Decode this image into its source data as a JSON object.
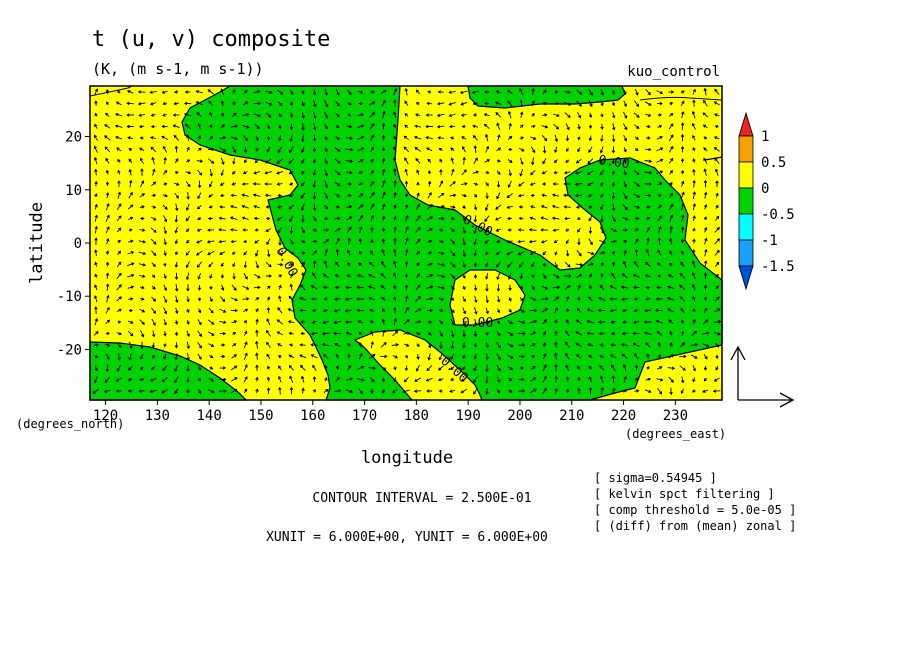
{
  "chart_data": {
    "type": "heatmap",
    "title": "t (u, v) composite",
    "subtitle": "(K, (m s-1, m s-1))",
    "run_label": "kuo_control",
    "xlabel": "longitude",
    "ylabel": "latitude",
    "x_unit_label": "(degrees_east)",
    "y_unit_label": "(degrees_north)",
    "xlim": [
      117,
      239
    ],
    "ylim": [
      -29.5,
      29.5
    ],
    "x_ticks": [
      120,
      130,
      140,
      150,
      160,
      170,
      180,
      190,
      200,
      210,
      220,
      230
    ],
    "y_ticks": [
      -20,
      -10,
      0,
      10,
      20
    ],
    "colorbar": {
      "levels": [
        "1",
        "0.5",
        "0",
        "-0.5",
        "-1",
        "-1.5"
      ],
      "colors": [
        "#e8261f",
        "#f5a000",
        "#ffff00",
        "#00d200",
        "#00ffff",
        "#18a0ff",
        "#0050d8"
      ]
    },
    "fill_colors": {
      "positive": "#ffff00",
      "negative": "#00d200"
    },
    "contour_labels": [
      "0.00",
      "0.00",
      "0.00",
      "0.00",
      "0.00"
    ],
    "footer": {
      "contour_interval": "CONTOUR INTERVAL = 2.500E-01",
      "units": "XUNIT = 6.000E+00, YUNIT = 6.000E+00"
    },
    "notes": [
      "[ sigma=0.54945 ]",
      "[ kelvin spct filtering ]",
      "[ comp threshold = 5.0e-05 ]",
      "[ (diff) from (mean) zonal ]"
    ]
  }
}
